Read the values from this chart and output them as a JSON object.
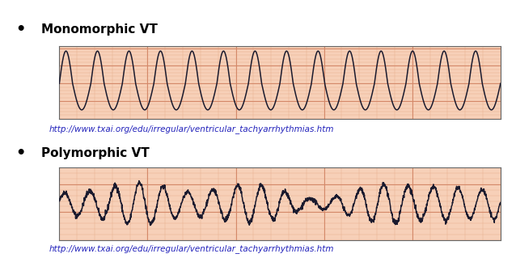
{
  "bg_color": "#ffffff",
  "ecg_bg": "#f7d0b8",
  "grid_major_color": "#d4896a",
  "grid_minor_color": "#e8b090",
  "ecg_line_color": "#1a1a2e",
  "label1": "Monomorphic VT",
  "label2": "Polymorphic VT",
  "bullet": "•",
  "url": "http://www.txai.org/edu/irregular/ventricular_tachyarrhythmias.htm",
  "label_fontsize": 11,
  "url_fontsize": 7.5,
  "ecg_linewidth": 1.1,
  "fig_width": 6.38,
  "fig_height": 3.19
}
